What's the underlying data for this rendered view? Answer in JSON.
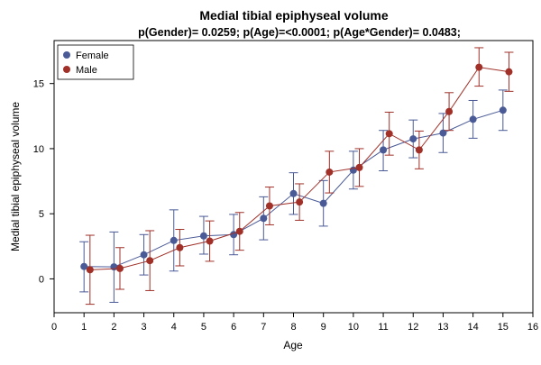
{
  "chart_data": {
    "type": "line",
    "title": "Medial tibial epiphyseal volume",
    "subtitle": "p(Gender)= 0.0259; p(Age)=<0.0001; p(Age*Gender)= 0.0483;",
    "xlabel": "Age",
    "ylabel": "Medial tibial epiphyseal volume",
    "xlim": [
      0,
      16
    ],
    "ylim": [
      -2.6,
      18.3
    ],
    "x_ticks": [
      0,
      1,
      2,
      3,
      4,
      5,
      6,
      7,
      8,
      9,
      10,
      11,
      12,
      13,
      14,
      15,
      16
    ],
    "y_ticks": [
      0,
      5,
      10,
      15
    ],
    "grid": false,
    "legend_position": "top-left",
    "series": [
      {
        "name": "Female",
        "color": "#4a5a96",
        "points": [
          {
            "x": 1,
            "y": 0.95,
            "lo": -1.0,
            "hi": 2.85
          },
          {
            "x": 2,
            "y": 0.92,
            "lo": -1.8,
            "hi": 3.6
          },
          {
            "x": 3,
            "y": 1.85,
            "lo": 0.3,
            "hi": 3.4
          },
          {
            "x": 4,
            "y": 2.95,
            "lo": 0.6,
            "hi": 5.3
          },
          {
            "x": 5,
            "y": 3.3,
            "lo": 1.9,
            "hi": 4.8
          },
          {
            "x": 6,
            "y": 3.4,
            "lo": 1.85,
            "hi": 4.95
          },
          {
            "x": 7,
            "y": 4.65,
            "lo": 3.0,
            "hi": 6.3
          },
          {
            "x": 8,
            "y": 6.55,
            "lo": 4.95,
            "hi": 8.15
          },
          {
            "x": 9,
            "y": 5.8,
            "lo": 4.05,
            "hi": 7.55
          },
          {
            "x": 10,
            "y": 8.35,
            "lo": 6.9,
            "hi": 9.8
          },
          {
            "x": 11,
            "y": 9.9,
            "lo": 8.3,
            "hi": 11.4
          },
          {
            "x": 12,
            "y": 10.75,
            "lo": 9.3,
            "hi": 12.2
          },
          {
            "x": 13,
            "y": 11.2,
            "lo": 9.7,
            "hi": 12.7
          },
          {
            "x": 14,
            "y": 12.25,
            "lo": 10.8,
            "hi": 13.7
          },
          {
            "x": 15,
            "y": 12.95,
            "lo": 11.4,
            "hi": 14.5
          }
        ]
      },
      {
        "name": "Male",
        "color": "#a03028",
        "points": [
          {
            "x": 1.2,
            "y": 0.7,
            "lo": -1.95,
            "hi": 3.35
          },
          {
            "x": 2.2,
            "y": 0.8,
            "lo": -0.8,
            "hi": 2.4
          },
          {
            "x": 3.2,
            "y": 1.4,
            "lo": -0.9,
            "hi": 3.7
          },
          {
            "x": 4.2,
            "y": 2.4,
            "lo": 1.0,
            "hi": 3.8
          },
          {
            "x": 5.2,
            "y": 2.9,
            "lo": 1.35,
            "hi": 4.45
          },
          {
            "x": 6.2,
            "y": 3.65,
            "lo": 2.2,
            "hi": 5.1
          },
          {
            "x": 7.2,
            "y": 5.6,
            "lo": 4.15,
            "hi": 7.05
          },
          {
            "x": 8.2,
            "y": 5.9,
            "lo": 4.5,
            "hi": 7.3
          },
          {
            "x": 9.2,
            "y": 8.2,
            "lo": 6.6,
            "hi": 9.8
          },
          {
            "x": 10.2,
            "y": 8.55,
            "lo": 7.1,
            "hi": 10.0
          },
          {
            "x": 11.2,
            "y": 11.15,
            "lo": 9.5,
            "hi": 12.8
          },
          {
            "x": 12.2,
            "y": 9.9,
            "lo": 8.45,
            "hi": 11.35
          },
          {
            "x": 13.2,
            "y": 12.85,
            "lo": 11.4,
            "hi": 14.3
          },
          {
            "x": 14.2,
            "y": 16.25,
            "lo": 14.8,
            "hi": 17.75
          },
          {
            "x": 15.2,
            "y": 15.9,
            "lo": 14.4,
            "hi": 17.4
          }
        ]
      }
    ]
  }
}
